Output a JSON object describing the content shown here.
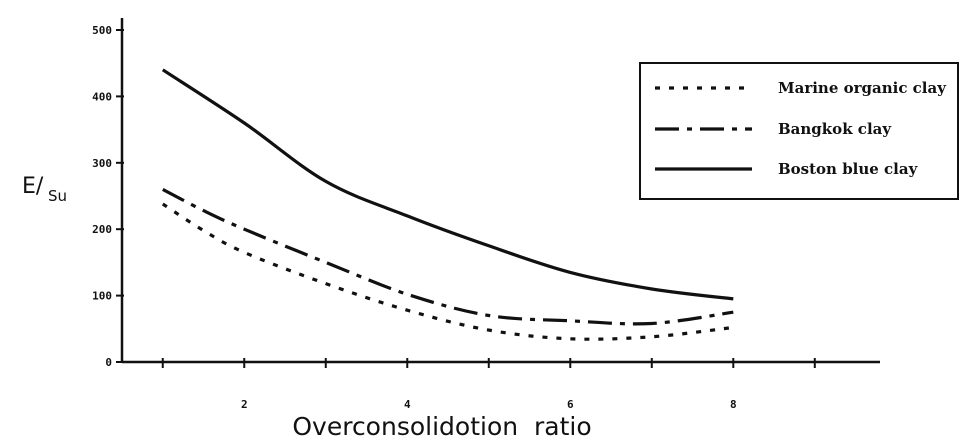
{
  "chart_data": {
    "type": "line",
    "title": "",
    "xlabel": "Overconsolidotion  ratio",
    "ylabel_main": "E/",
    "ylabel_sub": "Su",
    "xlim": [
      0.5,
      9.8
    ],
    "ylim": [
      0,
      500
    ],
    "x_ticks": [
      2,
      4,
      6,
      8
    ],
    "x_tick_labels": [
      "2",
      "4",
      "6",
      "8"
    ],
    "x_minor_ticks": [
      1,
      3,
      5,
      7,
      9
    ],
    "y_ticks": [
      0,
      100,
      200,
      300,
      400,
      500
    ],
    "y_tick_labels": [
      "0",
      "100",
      "200",
      "300",
      "400",
      "500"
    ],
    "grid": false,
    "legend_position": "top-right",
    "series": [
      {
        "name": "Marine organic clay",
        "style": "dotted",
        "color": "#111111",
        "x": [
          1,
          1.5,
          2,
          3,
          4,
          5,
          6,
          7,
          8
        ],
        "y": [
          238,
          198,
          165,
          118,
          78,
          48,
          35,
          38,
          52
        ]
      },
      {
        "name": "Bangkok clay",
        "style": "dash-dot",
        "color": "#111111",
        "x": [
          1,
          1.5,
          2,
          3,
          4,
          5,
          6,
          7,
          8
        ],
        "y": [
          260,
          228,
          200,
          150,
          102,
          70,
          62,
          58,
          75
        ]
      },
      {
        "name": "Boston blue clay",
        "style": "solid",
        "color": "#111111",
        "x": [
          1,
          2,
          3,
          4,
          5,
          6,
          7,
          8
        ],
        "y": [
          440,
          360,
          272,
          220,
          175,
          135,
          110,
          95
        ]
      }
    ]
  }
}
